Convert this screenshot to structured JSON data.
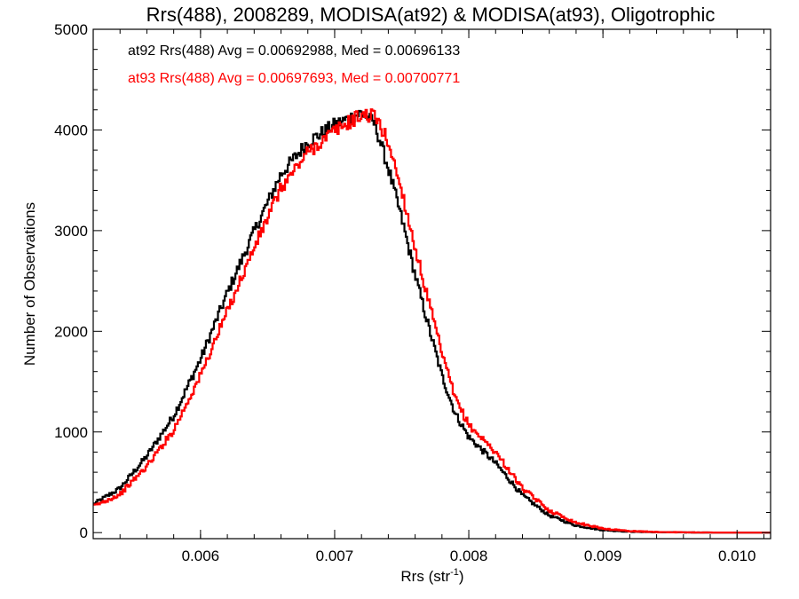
{
  "chart_data": {
    "type": "line",
    "step": true,
    "title": "Rrs(488), 2008289, MODISA(at92) & MODISA(at93), Oligotrophic",
    "xlabel_main": "Rrs (str",
    "xlabel_sup": "-1",
    "xlabel_close": ")",
    "ylabel": "Number of Observations",
    "xlim": [
      0.0052,
      0.01025
    ],
    "ylim": [
      -60,
      5000
    ],
    "x_ticks": [
      0.006,
      0.007,
      0.008,
      0.009,
      0.01
    ],
    "x_tick_labels": [
      "0.006",
      "0.007",
      "0.008",
      "0.009",
      "0.010"
    ],
    "y_ticks": [
      0,
      1000,
      2000,
      3000,
      4000,
      5000
    ],
    "y_tick_labels": [
      "0",
      "1000",
      "2000",
      "3000",
      "4000",
      "5000"
    ],
    "grid": false,
    "legend_position": "top-left",
    "series": [
      {
        "name": "at92",
        "legend_text": "at92 Rrs(488) Avg = 0.00692988, Med = 0.00696133",
        "color": "#000000",
        "points": [
          [
            0.0052,
            280
          ],
          [
            0.0054,
            440
          ],
          [
            0.0056,
            760
          ],
          [
            0.0058,
            1160
          ],
          [
            0.006,
            1720
          ],
          [
            0.0062,
            2380
          ],
          [
            0.0064,
            2990
          ],
          [
            0.0066,
            3560
          ],
          [
            0.0068,
            3880
          ],
          [
            0.007,
            4050
          ],
          [
            0.0072,
            4170
          ],
          [
            0.0073,
            4060
          ],
          [
            0.0074,
            3620
          ],
          [
            0.0075,
            3120
          ],
          [
            0.0076,
            2560
          ],
          [
            0.0077,
            2050
          ],
          [
            0.0078,
            1560
          ],
          [
            0.0079,
            1180
          ],
          [
            0.008,
            950
          ],
          [
            0.0082,
            690
          ],
          [
            0.0084,
            370
          ],
          [
            0.0086,
            170
          ],
          [
            0.0088,
            70
          ],
          [
            0.009,
            25
          ],
          [
            0.0092,
            10
          ],
          [
            0.0094,
            4
          ],
          [
            0.0096,
            2
          ],
          [
            0.0098,
            1
          ],
          [
            0.01,
            0
          ],
          [
            0.01025,
            0
          ]
        ]
      },
      {
        "name": "at93",
        "legend_text": "at93 Rrs(488) Avg = 0.00697693, Med = 0.00700771",
        "color": "#ff0000",
        "points": [
          [
            0.0052,
            260
          ],
          [
            0.0054,
            380
          ],
          [
            0.0056,
            660
          ],
          [
            0.0058,
            1020
          ],
          [
            0.006,
            1560
          ],
          [
            0.0062,
            2200
          ],
          [
            0.0064,
            2830
          ],
          [
            0.0066,
            3420
          ],
          [
            0.0068,
            3780
          ],
          [
            0.007,
            3990
          ],
          [
            0.0072,
            4150
          ],
          [
            0.0073,
            4140
          ],
          [
            0.0074,
            3880
          ],
          [
            0.0075,
            3400
          ],
          [
            0.0076,
            2830
          ],
          [
            0.0077,
            2300
          ],
          [
            0.0078,
            1780
          ],
          [
            0.0079,
            1330
          ],
          [
            0.008,
            1070
          ],
          [
            0.0082,
            800
          ],
          [
            0.0084,
            440
          ],
          [
            0.0086,
            220
          ],
          [
            0.0088,
            100
          ],
          [
            0.009,
            40
          ],
          [
            0.0092,
            15
          ],
          [
            0.0094,
            6
          ],
          [
            0.0096,
            3
          ],
          [
            0.0098,
            1
          ],
          [
            0.01,
            0
          ],
          [
            0.01025,
            0
          ]
        ]
      }
    ],
    "bin_width": 1e-05
  }
}
